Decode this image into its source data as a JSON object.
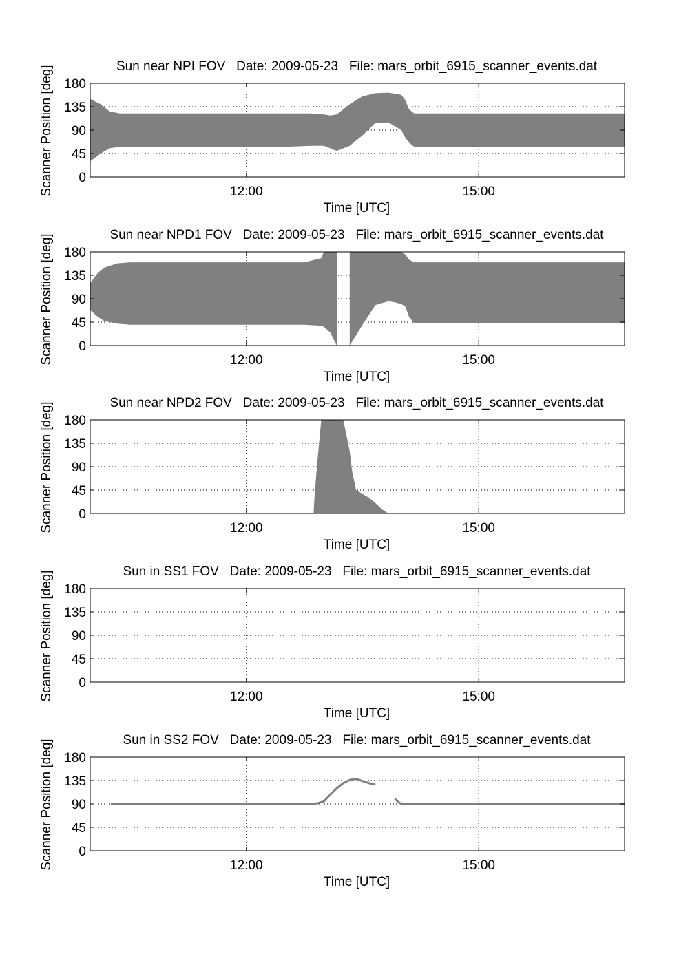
{
  "figure": {
    "background": "#ffffff",
    "fill_color": "#808080",
    "line_color": "#808080",
    "axis_color": "#000000",
    "grid": true,
    "grid_style": "dotted"
  },
  "chart_data": [
    {
      "type": "area",
      "title": "Sun near NPI FOV   Date: 2009-05-23   File: mars_orbit_6915_scanner_events.dat",
      "xlabel": "Time [UTC]",
      "ylabel": "Scanner Position [deg]",
      "xlim": [
        "09:59",
        "16:53"
      ],
      "ylim": [
        0,
        180
      ],
      "xticks": [
        "12:00",
        "15:00"
      ],
      "yticks": [
        0,
        45,
        90,
        135,
        180
      ],
      "grid": true,
      "series": [
        {
          "bands": [
            {
              "x": [
                "09:59",
                "10:07",
                "10:14",
                "10:22",
                "10:30",
                "11:30",
                "12:30",
                "12:50",
                "13:00",
                "13:05",
                "13:10",
                "13:20",
                "13:30",
                "13:40",
                "13:50",
                "14:00",
                "14:03",
                "14:06",
                "14:10",
                "14:20",
                "15:00",
                "16:00",
                "16:53"
              ],
              "upper": [
                150,
                140,
                126,
                122,
                122,
                122,
                122,
                122,
                120,
                118,
                120,
                140,
                155,
                161,
                162,
                158,
                148,
                130,
                122,
                122,
                122,
                122,
                122
              ],
              "lower": [
                30,
                45,
                55,
                58,
                58,
                58,
                58,
                60,
                60,
                55,
                50,
                60,
                80,
                104,
                105,
                90,
                76,
                66,
                58,
                58,
                58,
                58,
                58
              ]
            }
          ]
        }
      ]
    },
    {
      "type": "area",
      "title": "Sun near NPD1 FOV   Date: 2009-05-23   File: mars_orbit_6915_scanner_events.dat",
      "xlabel": "Time [UTC]",
      "ylabel": "Scanner Position [deg]",
      "xlim": [
        "09:59",
        "16:53"
      ],
      "ylim": [
        0,
        180
      ],
      "xticks": [
        "12:00",
        "15:00"
      ],
      "yticks": [
        0,
        45,
        90,
        135,
        180
      ],
      "grid": true,
      "series": [
        {
          "bands": [
            {
              "x": [
                "09:59",
                "10:05",
                "10:10",
                "10:20",
                "10:30",
                "12:00",
                "12:45",
                "12:58",
                "13:00",
                "13:05",
                "13:10"
              ],
              "upper": [
                120,
                140,
                150,
                158,
                160,
                160,
                160,
                168,
                180,
                180,
                180
              ],
              "lower": [
                68,
                55,
                47,
                42,
                40,
                40,
                40,
                38,
                36,
                25,
                0
              ]
            },
            {
              "x": [
                "13:20",
                "13:30",
                "13:40",
                "13:50",
                "13:55",
                "14:00",
                "14:03",
                "14:06",
                "14:10",
                "15:00",
                "16:00",
                "16:53"
              ],
              "upper": [
                180,
                180,
                180,
                180,
                180,
                180,
                175,
                165,
                160,
                160,
                160,
                160
              ],
              "lower": [
                0,
                40,
                78,
                85,
                83,
                80,
                75,
                55,
                43,
                43,
                43,
                43
              ]
            }
          ]
        }
      ]
    },
    {
      "type": "area",
      "title": "Sun near NPD2 FOV   Date: 2009-05-23   File: mars_orbit_6915_scanner_events.dat",
      "xlabel": "Time [UTC]",
      "ylabel": "Scanner Position [deg]",
      "xlim": [
        "09:59",
        "16:53"
      ],
      "ylim": [
        0,
        180
      ],
      "xticks": [
        "12:00",
        "15:00"
      ],
      "yticks": [
        0,
        45,
        90,
        135,
        180
      ],
      "grid": true,
      "series": [
        {
          "bands": [
            {
              "x": [
                "12:52",
                "12:53",
                "12:55",
                "12:58",
                "13:00",
                "13:05",
                "13:15",
                "13:20",
                "13:22",
                "13:25",
                "13:35",
                "13:40",
                "13:45",
                "13:50"
              ],
              "upper": [
                0,
                40,
                100,
                180,
                180,
                180,
                180,
                120,
                80,
                45,
                30,
                20,
                8,
                0
              ],
              "lower": [
                0,
                0,
                0,
                0,
                0,
                0,
                0,
                0,
                0,
                0,
                0,
                0,
                0,
                0
              ]
            }
          ]
        }
      ]
    },
    {
      "type": "line",
      "title": "Sun in SS1 FOV   Date: 2009-05-23   File: mars_orbit_6915_scanner_events.dat",
      "xlabel": "Time [UTC]",
      "ylabel": "Scanner Position [deg]",
      "xlim": [
        "09:59",
        "16:53"
      ],
      "ylim": [
        0,
        180
      ],
      "xticks": [
        "12:00",
        "15:00"
      ],
      "yticks": [
        0,
        45,
        90,
        135,
        180
      ],
      "grid": true,
      "series": []
    },
    {
      "type": "line",
      "title": "Sun in SS2 FOV   Date: 2009-05-23   File: mars_orbit_6915_scanner_events.dat",
      "xlabel": "Time [UTC]",
      "ylabel": "Scanner Position [deg]",
      "xlim": [
        "09:59",
        "16:53"
      ],
      "ylim": [
        0,
        180
      ],
      "xticks": [
        "12:00",
        "15:00"
      ],
      "yticks": [
        0,
        45,
        90,
        135,
        180
      ],
      "grid": true,
      "series": [
        {
          "segments": [
            {
              "x": [
                "10:15",
                "11:00",
                "12:00",
                "12:50",
                "12:55",
                "13:00",
                "13:05",
                "13:10",
                "13:15",
                "13:20",
                "13:25",
                "13:30",
                "13:35",
                "13:40"
              ],
              "y": [
                90,
                90,
                90,
                90,
                91,
                95,
                108,
                120,
                130,
                136,
                138,
                134,
                130,
                127
              ]
            },
            {
              "x": [
                "13:55",
                "13:58",
                "14:00",
                "14:30",
                "15:30",
                "16:30",
                "16:53"
              ],
              "y": [
                100,
                93,
                90,
                90,
                90,
                90,
                90
              ]
            }
          ]
        }
      ]
    }
  ]
}
